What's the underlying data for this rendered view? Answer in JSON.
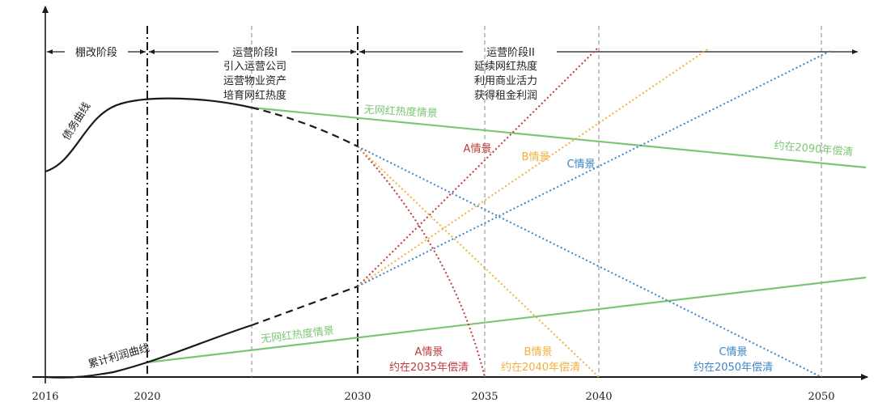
{
  "years": [
    "2016",
    "2020",
    "2030",
    "2035",
    "2040",
    "2050"
  ],
  "phases": {
    "p0": {
      "title": "棚改阶段"
    },
    "p1": {
      "title": "运营阶段I",
      "lines": [
        "引入运营公司",
        "运营物业资产",
        "培育网红热度"
      ]
    },
    "p2": {
      "title": "运营阶段II",
      "lines": [
        "延续网红热度",
        "利用商业活力",
        "获得租金利润"
      ]
    }
  },
  "curves": {
    "debt": "债务曲线",
    "profit": "累计利润曲线"
  },
  "scenarios": {
    "no_heat_top": "无网红热度情景",
    "no_heat_bottom": "无网红热度情景",
    "payoff_2090": "约在2090年偿清",
    "a_top": "A情景",
    "b_top": "B情景",
    "c_top": "C情景",
    "a_bottom": "A情景",
    "a_payoff": "约在2035年偿清",
    "b_bottom": "B情景",
    "b_payoff": "约在2040年偿清",
    "c_bottom": "C情景",
    "c_payoff": "约在2050年偿清"
  },
  "colors": {
    "axis": "#1a1a1a",
    "green": "#7cc576",
    "red": "#c0393b",
    "orange": "#f0b13b",
    "blue": "#3a86c8",
    "grey_dash": "#888888"
  }
}
